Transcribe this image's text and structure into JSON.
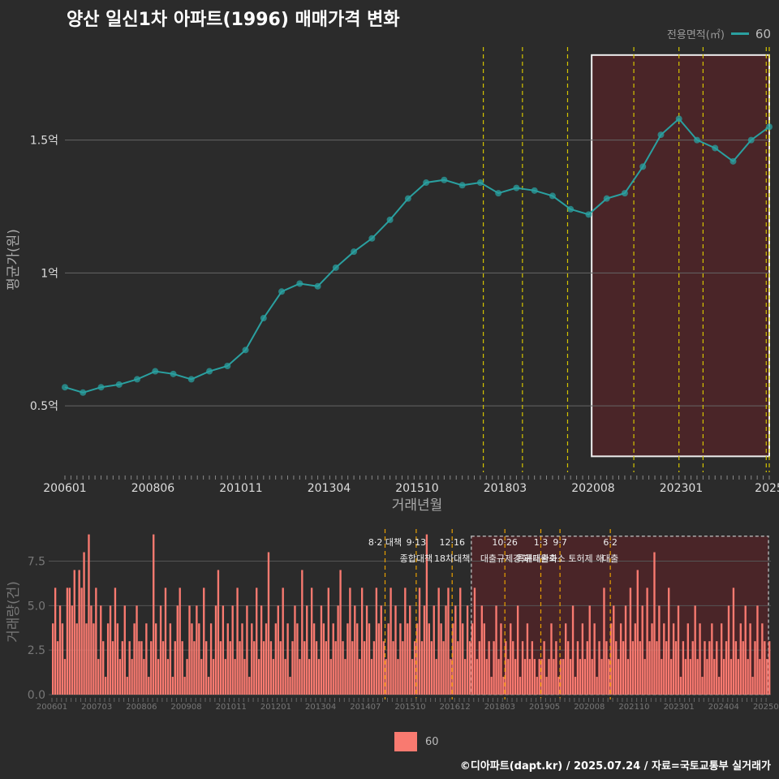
{
  "title": "양산 일신1차 아파트(1996) 매매가격 변화",
  "legend": {
    "label": "전용면적(㎡)",
    "series_name": "60",
    "line_color": "#2aa0a0",
    "bar_color": "#f97a70"
  },
  "footer": "©디아파트(dapt.kr) / 2025.07.24 / 자료=국토교통부 실거래가",
  "chart_data": [
    {
      "type": "line",
      "xlabel": "거래년월",
      "ylabel": "평균가(원)",
      "x_tick_labels": [
        "200601",
        "200806",
        "201011",
        "201304",
        "201510",
        "201803",
        "202008",
        "202301",
        "2025"
      ],
      "y_ticks": [
        {
          "value": 0.5,
          "label": "0.5억"
        },
        {
          "value": 1.0,
          "label": "1억"
        },
        {
          "value": 1.5,
          "label": "1.5억"
        }
      ],
      "ylim": [
        0.25,
        1.85
      ],
      "unit": "억원",
      "series": [
        {
          "name": "60",
          "color": "#2aa0a0",
          "x": [
            "2006-01",
            "2006-07",
            "2007-01",
            "2007-07",
            "2008-01",
            "2008-07",
            "2009-01",
            "2009-07",
            "2010-01",
            "2010-07",
            "2011-01",
            "2011-07",
            "2012-01",
            "2012-07",
            "2013-01",
            "2013-07",
            "2014-01",
            "2014-07",
            "2015-01",
            "2015-07",
            "2016-01",
            "2016-07",
            "2017-01",
            "2017-07",
            "2018-01",
            "2018-07",
            "2019-01",
            "2019-07",
            "2020-01",
            "2020-07",
            "2021-01",
            "2021-07",
            "2022-01",
            "2022-07",
            "2023-01",
            "2023-07",
            "2024-01",
            "2024-07",
            "2025-01",
            "2025-07"
          ],
          "y": [
            0.57,
            0.55,
            0.57,
            0.58,
            0.6,
            0.63,
            0.62,
            0.6,
            0.63,
            0.65,
            0.71,
            0.83,
            0.93,
            0.96,
            0.95,
            1.02,
            1.08,
            1.13,
            1.2,
            1.28,
            1.34,
            1.35,
            1.33,
            1.34,
            1.3,
            1.32,
            1.31,
            1.29,
            1.24,
            1.22,
            1.28,
            1.3,
            1.4,
            1.52,
            1.58,
            1.5,
            1.47,
            1.42,
            1.5,
            1.55
          ]
        }
      ],
      "shaded_region": {
        "from": "2020-08",
        "to": "2025-07"
      },
      "policy_lines": [
        "2017-08",
        "2018-09",
        "2019-12",
        "2021-10",
        "2023-01",
        "2023-09",
        "2025-06",
        "2025-07"
      ]
    },
    {
      "type": "bar",
      "ylabel": "거래량(건)",
      "x_tick_labels": [
        "200601",
        "200703",
        "200806",
        "200908",
        "201011",
        "201201",
        "201304",
        "201407",
        "201510",
        "201612",
        "201803",
        "201905",
        "202008",
        "202110",
        "202301",
        "202404",
        "202507"
      ],
      "y_ticks": [
        {
          "value": 0,
          "label": "0.0"
        },
        {
          "value": 2.5,
          "label": "2.5"
        },
        {
          "value": 5,
          "label": "5.0"
        },
        {
          "value": 7.5,
          "label": "7.5"
        }
      ],
      "ylim": [
        0,
        9.3
      ],
      "monthly_counts": [
        4,
        6,
        3,
        5,
        4,
        2,
        6,
        6,
        5,
        7,
        4,
        7,
        6,
        8,
        4,
        9,
        5,
        4,
        6,
        2,
        5,
        3,
        1,
        4,
        5,
        3,
        6,
        4,
        2,
        3,
        5,
        1,
        3,
        2,
        4,
        5,
        3,
        3,
        2,
        4,
        1,
        3,
        9,
        4,
        2,
        5,
        3,
        6,
        2,
        4,
        1,
        3,
        5,
        6,
        3,
        1,
        2,
        5,
        4,
        3,
        5,
        4,
        2,
        6,
        3,
        1,
        4,
        2,
        5,
        7,
        3,
        5,
        2,
        4,
        3,
        5,
        2,
        6,
        3,
        4,
        2,
        5,
        1,
        4,
        3,
        6,
        2,
        5,
        3,
        4,
        8,
        3,
        2,
        4,
        5,
        3,
        6,
        2,
        4,
        1,
        3,
        5,
        4,
        2,
        7,
        3,
        5,
        2,
        6,
        4,
        3,
        2,
        5,
        4,
        3,
        6,
        2,
        4,
        3,
        5,
        7,
        3,
        2,
        4,
        6,
        3,
        5,
        4,
        2,
        6,
        3,
        5,
        4,
        2,
        3,
        6,
        4,
        5,
        3,
        2,
        4,
        6,
        3,
        5,
        2,
        4,
        3,
        6,
        4,
        5,
        2,
        3,
        4,
        6,
        3,
        5,
        9,
        4,
        3,
        5,
        2,
        6,
        4,
        3,
        5,
        6,
        2,
        4,
        5,
        3,
        6,
        4,
        2,
        5,
        3,
        4,
        6,
        2,
        3,
        5,
        4,
        2,
        3,
        1,
        3,
        5,
        2,
        4,
        1,
        3,
        2,
        4,
        3,
        2,
        5,
        1,
        3,
        2,
        4,
        2,
        3,
        2,
        1,
        2,
        2,
        3,
        1,
        2,
        4,
        2,
        3,
        1,
        2,
        2,
        4,
        3,
        2,
        5,
        1,
        3,
        2,
        4,
        2,
        3,
        5,
        2,
        4,
        1,
        3,
        2,
        6,
        3,
        2,
        4,
        5,
        3,
        2,
        4,
        3,
        5,
        2,
        6,
        3,
        4,
        7,
        3,
        5,
        2,
        6,
        3,
        4,
        8,
        3,
        5,
        2,
        4,
        3,
        6,
        2,
        4,
        3,
        5,
        1,
        3,
        2,
        4,
        2,
        3,
        5,
        2,
        4,
        1,
        3,
        2,
        3,
        4,
        2,
        3,
        1,
        4,
        2,
        3,
        5,
        2,
        6,
        3,
        2,
        4,
        3,
        5,
        2,
        4,
        1,
        3,
        5,
        2,
        4,
        3,
        2,
        3
      ],
      "annotations": [
        {
          "date": "2017-08",
          "line1": "8·2 대책",
          "line2": ""
        },
        {
          "date": "2018-09",
          "line1": "9·13",
          "line2": "종합대책"
        },
        {
          "date": "2019-12",
          "line1": "12·16",
          "line2": "18차대책"
        },
        {
          "date": "2021-10",
          "line1": "10·26",
          "line2": "대출규제강화"
        },
        {
          "date": "2023-01",
          "line1": "1·3",
          "line2": "규제완화"
        },
        {
          "date": "2023-09",
          "line1": "9·7",
          "line2": "특례대출축소 토허제 해"
        },
        {
          "date": "2025-06",
          "line1": "6·2",
          "line2": "대출"
        }
      ]
    }
  ]
}
